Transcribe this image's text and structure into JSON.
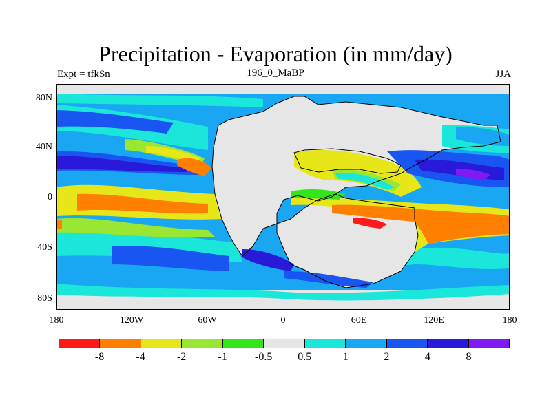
{
  "figure": {
    "title": "Precipitation - Evaporation (in mm/day)",
    "subtitle_left": "Expt = tfkSn",
    "subtitle_center": "196_0_MaBP",
    "subtitle_right": "JJA"
  },
  "map": {
    "lat_labels": [
      "80N",
      "40N",
      "0",
      "40S",
      "80S"
    ],
    "lon_labels": [
      "180",
      "120W",
      "60W",
      "0",
      "60E",
      "120E",
      "180"
    ],
    "projection": "cylindrical equidistant",
    "land_fill_color": "#e6e6e6"
  },
  "colorbar": {
    "colors": [
      "#ff1a1a",
      "#ff8000",
      "#e6e619",
      "#99e633",
      "#33e61a",
      "#e6e6e6",
      "#1ae6d9",
      "#19a6f2",
      "#1955f0",
      "#2919d9",
      "#8019f2"
    ],
    "labels": [
      "-8",
      "-4",
      "-2",
      "-1",
      "-0.5",
      "0.5",
      "1",
      "2",
      "4",
      "8"
    ]
  }
}
